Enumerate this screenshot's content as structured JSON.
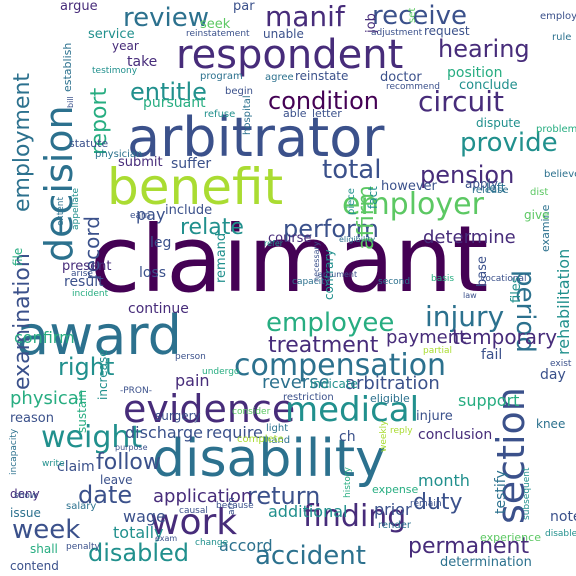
{
  "palette": {
    "p1": "#440154",
    "p2": "#472c7a",
    "p3": "#3b518b",
    "p4": "#2c718e",
    "p5": "#21908d",
    "p6": "#27ad81",
    "p7": "#5cc863",
    "p8": "#aadc32"
  },
  "words": [
    {
      "text": "claimant",
      "c": "p1"
    },
    {
      "text": "arbitrator",
      "c": "p3"
    },
    {
      "text": "award",
      "c": "p4"
    },
    {
      "text": "disability",
      "c": "p4"
    },
    {
      "text": "benefit",
      "c": "p8"
    },
    {
      "text": "respondent",
      "c": "p2"
    },
    {
      "text": "decision",
      "c": "p4"
    },
    {
      "text": "section",
      "c": "p3"
    },
    {
      "text": "evidence",
      "c": "p2"
    },
    {
      "text": "medical",
      "c": "p5"
    },
    {
      "text": "work",
      "c": "p2"
    },
    {
      "text": "weight",
      "c": "p5"
    },
    {
      "text": "compensation",
      "c": "p4"
    },
    {
      "text": "employer",
      "c": "p7"
    },
    {
      "text": "injury",
      "c": "p4"
    },
    {
      "text": "employee",
      "c": "p6"
    },
    {
      "text": "finding",
      "c": "p2"
    },
    {
      "text": "period",
      "c": "p4"
    },
    {
      "text": "circuit",
      "c": "p2"
    },
    {
      "text": "receive",
      "c": "p3"
    },
    {
      "text": "manif",
      "c": "p2"
    },
    {
      "text": "review",
      "c": "p4"
    },
    {
      "text": "hearing",
      "c": "p2"
    },
    {
      "text": "condition",
      "c": "p1"
    },
    {
      "text": "entitle",
      "c": "p5"
    },
    {
      "text": "report",
      "c": "p6"
    },
    {
      "text": "provide",
      "c": "p5"
    },
    {
      "text": "total",
      "c": "p3"
    },
    {
      "text": "pension",
      "c": "p2"
    },
    {
      "text": "perform",
      "c": "p3"
    },
    {
      "text": "relate",
      "c": "p5"
    },
    {
      "text": "treatment",
      "c": "p2"
    },
    {
      "text": "right",
      "c": "p5"
    },
    {
      "text": "payment",
      "c": "p2"
    },
    {
      "text": "temporary",
      "c": "p2"
    },
    {
      "text": "permanent",
      "c": "p2"
    },
    {
      "text": "accident",
      "c": "p4"
    },
    {
      "text": "disabled",
      "c": "p5"
    },
    {
      "text": "week",
      "c": "p3"
    },
    {
      "text": "date",
      "c": "p3"
    },
    {
      "text": "return",
      "c": "p3"
    },
    {
      "text": "follow",
      "c": "p3"
    },
    {
      "text": "application",
      "c": "p2"
    },
    {
      "text": "duty",
      "c": "p3"
    },
    {
      "text": "employment",
      "c": "p4"
    },
    {
      "text": "examination",
      "c": "p3"
    },
    {
      "text": "record",
      "c": "p3"
    },
    {
      "text": "affirm",
      "c": "p7"
    },
    {
      "text": "determine",
      "c": "p2"
    },
    {
      "text": "arbitration",
      "c": "p3"
    },
    {
      "text": "reverse",
      "c": "p4"
    },
    {
      "text": "physical",
      "c": "p6"
    },
    {
      "text": "conclusion",
      "c": "p2"
    },
    {
      "text": "support",
      "c": "p6"
    },
    {
      "text": "month",
      "c": "p5"
    },
    {
      "text": "rehabilitation",
      "c": "p5"
    },
    {
      "text": "confirm",
      "c": "p6"
    },
    {
      "text": "result",
      "c": "p3"
    },
    {
      "text": "continue",
      "c": "p2"
    },
    {
      "text": "loss",
      "c": "p3"
    },
    {
      "text": "present",
      "c": "p2"
    },
    {
      "text": "pain",
      "c": "p2"
    },
    {
      "text": "require",
      "c": "p3"
    },
    {
      "text": "discharge",
      "c": "p3"
    },
    {
      "text": "claim",
      "c": "p3"
    },
    {
      "text": "wage",
      "c": "p3"
    },
    {
      "text": "totally",
      "c": "p5"
    },
    {
      "text": "accord",
      "c": "p4"
    },
    {
      "text": "prior",
      "c": "p3"
    },
    {
      "text": "additional",
      "c": "p5"
    },
    {
      "text": "position",
      "c": "p6"
    },
    {
      "text": "conclude",
      "c": "p5"
    },
    {
      "text": "pursuant",
      "c": "p6"
    },
    {
      "text": "dispute",
      "c": "p5"
    },
    {
      "text": "apply",
      "c": "p3"
    },
    {
      "text": "release",
      "c": "p4"
    },
    {
      "text": "left",
      "c": "p4"
    },
    {
      "text": "however",
      "c": "p3"
    },
    {
      "text": "course",
      "c": "p2"
    },
    {
      "text": "include",
      "c": "p3"
    },
    {
      "text": "pay",
      "c": "p3"
    },
    {
      "text": "leg",
      "c": "p3"
    },
    {
      "text": "remand",
      "c": "p5"
    },
    {
      "text": "submit",
      "c": "p2"
    },
    {
      "text": "suffer",
      "c": "p3"
    },
    {
      "text": "service",
      "c": "p5"
    },
    {
      "text": "year",
      "c": "p2"
    },
    {
      "text": "take",
      "c": "p2"
    },
    {
      "text": "seek",
      "c": "p7"
    },
    {
      "text": "par",
      "c": "p3"
    },
    {
      "text": "argue",
      "c": "p2"
    },
    {
      "text": "establish",
      "c": "p4"
    },
    {
      "text": "unable",
      "c": "p3"
    },
    {
      "text": "request",
      "c": "p3"
    },
    {
      "text": "examine",
      "c": "p4"
    },
    {
      "text": "doctor",
      "c": "p3"
    },
    {
      "text": "reinstate",
      "c": "p3"
    },
    {
      "text": "agree",
      "c": "p4"
    },
    {
      "text": "program",
      "c": "p4"
    },
    {
      "text": "able",
      "c": "p3"
    },
    {
      "text": "letter",
      "c": "p3"
    },
    {
      "text": "begin",
      "c": "p3"
    },
    {
      "text": "statute",
      "c": "p3"
    },
    {
      "text": "physician",
      "c": "p4"
    },
    {
      "text": "hospital",
      "c": "p4"
    },
    {
      "text": "refuse",
      "c": "p5"
    },
    {
      "text": "sustain",
      "c": "p6"
    },
    {
      "text": "reason",
      "c": "p3"
    },
    {
      "text": "injure",
      "c": "p3"
    },
    {
      "text": "knee",
      "c": "p4"
    },
    {
      "text": "indicate",
      "c": "p5"
    },
    {
      "text": "eligible",
      "c": "p4"
    },
    {
      "text": "restriction",
      "c": "p3"
    },
    {
      "text": "day",
      "c": "p3"
    },
    {
      "text": "fail",
      "c": "p3"
    },
    {
      "text": "note",
      "c": "p3"
    },
    {
      "text": "testify",
      "c": "p4"
    },
    {
      "text": "expense",
      "c": "p6"
    },
    {
      "text": "experience",
      "c": "p7"
    },
    {
      "text": "render",
      "c": "p4"
    },
    {
      "text": "determination",
      "c": "p4"
    },
    {
      "text": "shall",
      "c": "p6"
    },
    {
      "text": "contend",
      "c": "p3"
    },
    {
      "text": "issue",
      "c": "p4"
    },
    {
      "text": "salary",
      "c": "p4"
    },
    {
      "text": "deny",
      "c": "p2"
    },
    {
      "text": "leave",
      "c": "p3"
    },
    {
      "text": "increase",
      "c": "p5"
    },
    {
      "text": "contrary",
      "c": "p5"
    },
    {
      "text": "surgery",
      "c": "p3"
    },
    {
      "text": "hand",
      "c": "p4"
    },
    {
      "text": "light",
      "c": "p4"
    },
    {
      "text": "complete",
      "c": "p8"
    },
    {
      "text": "ch",
      "c": "p3"
    },
    {
      "text": "base",
      "c": "p3"
    },
    {
      "text": "files",
      "c": "p5"
    },
    {
      "text": "file",
      "c": "p6"
    },
    {
      "text": "give",
      "c": "p7"
    },
    {
      "text": "dist",
      "c": "p7"
    },
    {
      "text": "piece",
      "c": "p5"
    },
    {
      "text": "fact",
      "c": "p5"
    },
    {
      "text": "problem",
      "c": "p6"
    },
    {
      "text": "believe",
      "c": "p4"
    },
    {
      "text": "employ",
      "c": "p3"
    },
    {
      "text": "rule",
      "c": "p4"
    },
    {
      "text": "adjustment",
      "c": "p3"
    },
    {
      "text": "reinstatement",
      "c": "p3"
    },
    {
      "text": "testimony",
      "c": "p5"
    },
    {
      "text": "recommend",
      "c": "p3"
    },
    {
      "text": "extent",
      "c": "p4"
    },
    {
      "text": "appellate",
      "c": "p5"
    },
    {
      "text": "earn",
      "c": "p3"
    },
    {
      "text": "arise",
      "c": "p3"
    },
    {
      "text": "incident",
      "c": "p6"
    },
    {
      "text": "incapacity",
      "c": "p4"
    },
    {
      "text": "write",
      "c": "p5"
    },
    {
      "text": "show",
      "c": "p3"
    },
    {
      "text": "penalty",
      "c": "p3"
    },
    {
      "text": "-PRON-",
      "c": "p3"
    },
    {
      "text": "consider",
      "c": "p7"
    },
    {
      "text": "person",
      "c": "p3"
    },
    {
      "text": "undergo",
      "c": "p6"
    },
    {
      "text": "capacity",
      "c": "p4"
    },
    {
      "text": "second",
      "c": "p4"
    },
    {
      "text": "partial",
      "c": "p8"
    },
    {
      "text": "exist",
      "c": "p3"
    },
    {
      "text": "vocational",
      "c": "p3"
    },
    {
      "text": "basis",
      "c": "p6"
    },
    {
      "text": "eligibility",
      "c": "p4"
    },
    {
      "text": "argument",
      "c": "p3"
    },
    {
      "text": "necessary",
      "c": "p3"
    },
    {
      "text": "purpose",
      "c": "p3"
    },
    {
      "text": "weekly",
      "c": "p8"
    },
    {
      "text": "reply",
      "c": "p8"
    },
    {
      "text": "history",
      "c": "p6"
    },
    {
      "text": "remain",
      "c": "p3"
    },
    {
      "text": "subsequent",
      "c": "p5"
    },
    {
      "text": "disable",
      "c": "p5"
    },
    {
      "text": "causal",
      "c": "p3"
    },
    {
      "text": "because",
      "c": "p3"
    },
    {
      "text": "change",
      "c": "p5"
    },
    {
      "text": "exam",
      "c": "p3"
    },
    {
      "text": "job",
      "c": "p2"
    },
    {
      "text": "set",
      "c": "p7"
    },
    {
      "text": "law",
      "c": "p3"
    },
    {
      "text": "bill",
      "c": "p3"
    },
    {
      "text": "refer",
      "c": "p5"
    },
    {
      "text": "arm",
      "c": "p3"
    }
  ]
}
